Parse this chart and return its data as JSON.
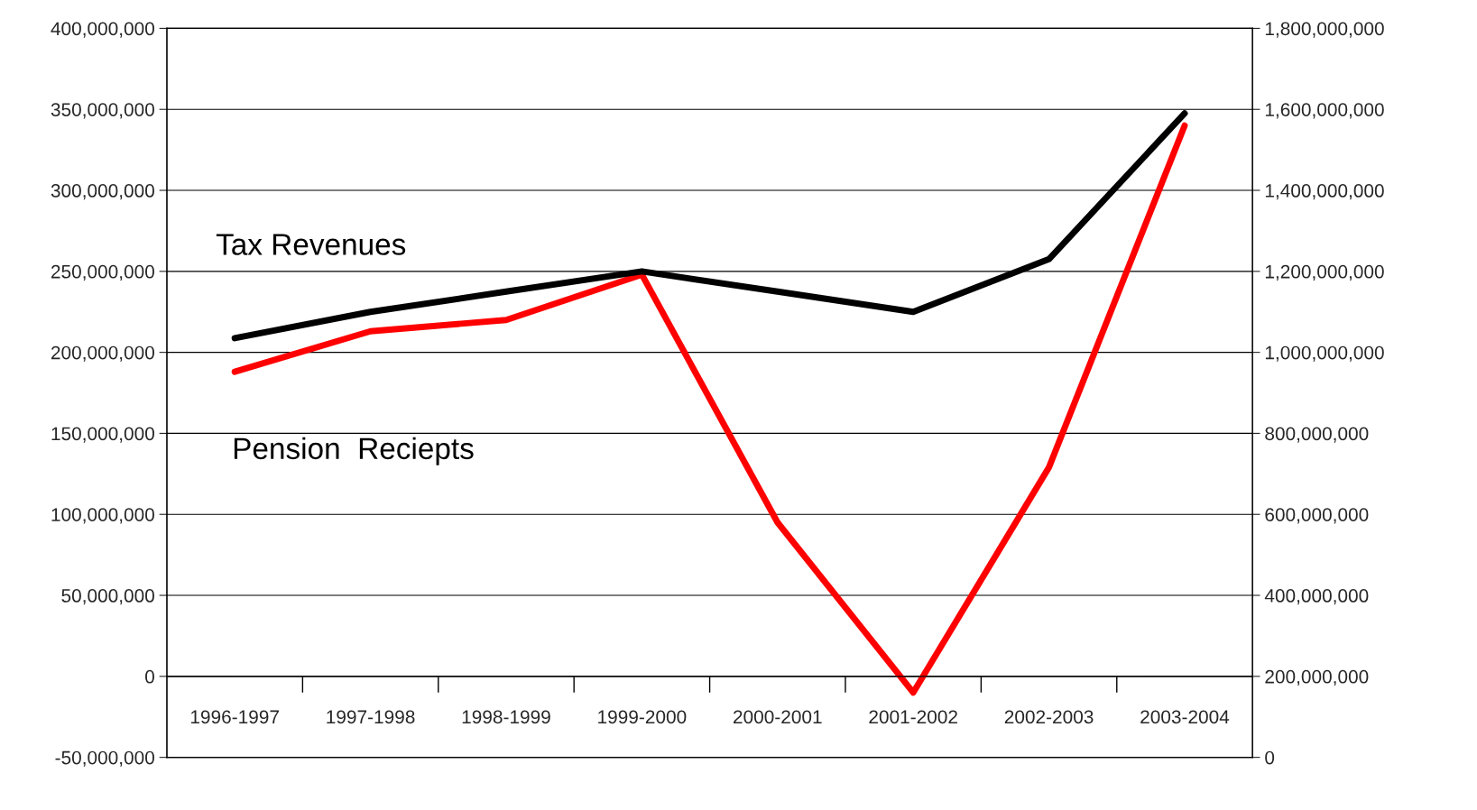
{
  "chart_data": {
    "type": "line",
    "categories": [
      "1996-1997",
      "1997-1998",
      "1998-1999",
      "1999-2000",
      "2000-2001",
      "2001-2002",
      "2002-2003",
      "2003-2004"
    ],
    "series": [
      {
        "name": "Tax Revenues",
        "color": "#000000",
        "axis": "y2",
        "values": [
          1035000000,
          1100000000,
          1150000000,
          1200000000,
          1150000000,
          1100000000,
          1230000000,
          1590000000
        ]
      },
      {
        "name": "Pension  Reciepts",
        "color": "#ff0000",
        "values": [
          188000000,
          213000000,
          220000000,
          248000000,
          95000000,
          -10000000,
          129000000,
          340000000
        ]
      }
    ],
    "ylim": [
      -50000000,
      400000000
    ],
    "yticks": [
      {
        "value": -50000000,
        "label": "-50,000,000"
      },
      0,
      {
        "value": 50000000,
        "label": "50,000,000"
      },
      {
        "value": 100000000,
        "label": "100,000,000"
      },
      {
        "value": 150000000,
        "label": "150,000,000"
      },
      {
        "value": 200000000,
        "label": "200,000,000"
      },
      {
        "value": 250000000,
        "label": "250,000,000"
      },
      {
        "value": 300000000,
        "label": "300,000,000"
      },
      {
        "value": 350000000,
        "label": "350,000,000"
      },
      {
        "value": 400000000,
        "label": "400,000,000"
      }
    ],
    "y2lim": [
      0,
      1800000000
    ],
    "y2ticks": [
      0,
      {
        "value": 200000000,
        "label": "200,000,000"
      },
      {
        "value": 400000000,
        "label": "400,000,000"
      },
      {
        "value": 600000000,
        "label": "600,000,000"
      },
      {
        "value": 800000000,
        "label": "800,000,000"
      },
      {
        "value": 1000000000,
        "label": "1,000,000,000"
      },
      {
        "value": 1200000000,
        "label": "1,200,000,000"
      },
      {
        "value": 1400000000,
        "label": "1,400,000,000"
      },
      {
        "value": 1600000000,
        "label": "1,600,000,000"
      },
      {
        "value": 1800000000,
        "label": "1,800,000,000"
      }
    ],
    "grid": "y",
    "legend": false,
    "marker": "none",
    "line_style": "solid"
  }
}
